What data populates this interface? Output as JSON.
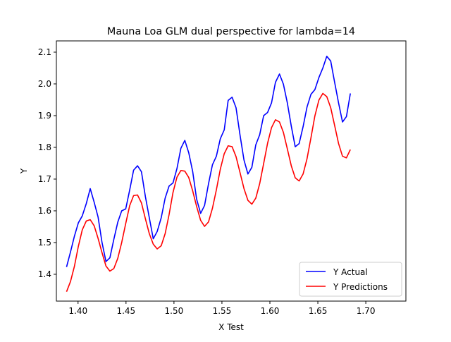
{
  "chart_data": {
    "type": "line",
    "title": "Mauna Loa GLM dual perspective for lambda=14",
    "xlabel": "X Test",
    "ylabel": "Y",
    "xlim": [
      1.3774,
      1.7418
    ],
    "ylim": [
      1.3155,
      2.1355
    ],
    "x_ticks": [
      1.4,
      1.45,
      1.5,
      1.55,
      1.6,
      1.65,
      1.7
    ],
    "x_tick_labels": [
      "1.40",
      "1.45",
      "1.50",
      "1.55",
      "1.60",
      "1.65",
      "1.70"
    ],
    "y_ticks": [
      1.4,
      1.5,
      1.6,
      1.7,
      1.8,
      1.9,
      2.0,
      2.1
    ],
    "y_tick_labels": [
      "1.4",
      "1.5",
      "1.6",
      "1.7",
      "1.8",
      "1.9",
      "2.0",
      "2.1"
    ],
    "grid": false,
    "legend_position": "bottom-right",
    "x": [
      1.388,
      1.3921,
      1.3962,
      1.4003,
      1.4044,
      1.4086,
      1.4127,
      1.4168,
      1.4209,
      1.425,
      1.4291,
      1.4332,
      1.4373,
      1.4414,
      1.4455,
      1.4497,
      1.4538,
      1.4579,
      1.462,
      1.4661,
      1.4702,
      1.4743,
      1.4784,
      1.4825,
      1.4867,
      1.4908,
      1.4949,
      1.499,
      1.5031,
      1.5072,
      1.5113,
      1.5154,
      1.5195,
      1.5236,
      1.5278,
      1.5319,
      1.536,
      1.5401,
      1.5442,
      1.5483,
      1.5524,
      1.5565,
      1.5606,
      1.5647,
      1.5689,
      1.573,
      1.5771,
      1.5812,
      1.5853,
      1.5894,
      1.5935,
      1.5976,
      1.6017,
      1.6058,
      1.61,
      1.6141,
      1.6182,
      1.6223,
      1.6264,
      1.6305,
      1.6346,
      1.6387,
      1.6428,
      1.6469,
      1.6511,
      1.6552,
      1.6593,
      1.6634,
      1.6675,
      1.6716,
      1.6757,
      1.6798,
      1.6839,
      1.688,
      1.6922,
      1.6963,
      1.7004,
      1.7045,
      1.7086,
      1.7127,
      1.7168,
      1.7209,
      1.725,
      1.7292
    ],
    "series": [
      {
        "name": "Y Actual",
        "color": "#0000ff",
        "values": [
          1.423,
          1.47,
          1.52,
          1.562,
          1.584,
          1.623,
          1.67,
          1.627,
          1.58,
          1.5,
          1.44,
          1.452,
          1.51,
          1.564,
          1.6,
          1.606,
          1.665,
          1.728,
          1.742,
          1.723,
          1.645,
          1.578,
          1.512,
          1.535,
          1.578,
          1.64,
          1.678,
          1.688,
          1.733,
          1.797,
          1.822,
          1.783,
          1.724,
          1.637,
          1.592,
          1.617,
          1.685,
          1.745,
          1.772,
          1.827,
          1.855,
          1.948,
          1.958,
          1.925,
          1.838,
          1.76,
          1.716,
          1.737,
          1.808,
          1.84,
          1.9,
          1.91,
          1.94,
          2.005,
          2.031,
          1.999,
          1.94,
          1.867,
          1.802,
          1.812,
          1.865,
          1.927,
          1.967,
          1.982,
          2.02,
          2.05,
          2.087,
          2.072,
          2.005,
          1.94,
          1.88,
          1.897,
          1.97,
          null,
          null,
          null,
          null,
          null,
          null,
          null,
          null,
          null,
          null,
          null
        ]
      },
      {
        "name": "Y Predictions",
        "color": "#ff0000",
        "values": [
          1.345,
          1.377,
          1.425,
          1.488,
          1.54,
          1.568,
          1.572,
          1.553,
          1.513,
          1.468,
          1.426,
          1.41,
          1.418,
          1.45,
          1.5,
          1.56,
          1.616,
          1.648,
          1.65,
          1.625,
          1.575,
          1.528,
          1.495,
          1.48,
          1.49,
          1.528,
          1.588,
          1.658,
          1.706,
          1.727,
          1.725,
          1.705,
          1.663,
          1.614,
          1.57,
          1.551,
          1.565,
          1.608,
          1.666,
          1.731,
          1.78,
          1.805,
          1.802,
          1.771,
          1.72,
          1.67,
          1.633,
          1.621,
          1.64,
          1.686,
          1.749,
          1.813,
          1.862,
          1.887,
          1.88,
          1.847,
          1.795,
          1.742,
          1.704,
          1.694,
          1.716,
          1.764,
          1.83,
          1.899,
          1.949,
          1.97,
          1.96,
          1.925,
          1.869,
          1.812,
          1.772,
          1.767,
          1.793,
          null,
          null,
          null,
          null,
          null,
          null,
          null,
          null,
          null,
          null,
          null
        ]
      }
    ]
  }
}
